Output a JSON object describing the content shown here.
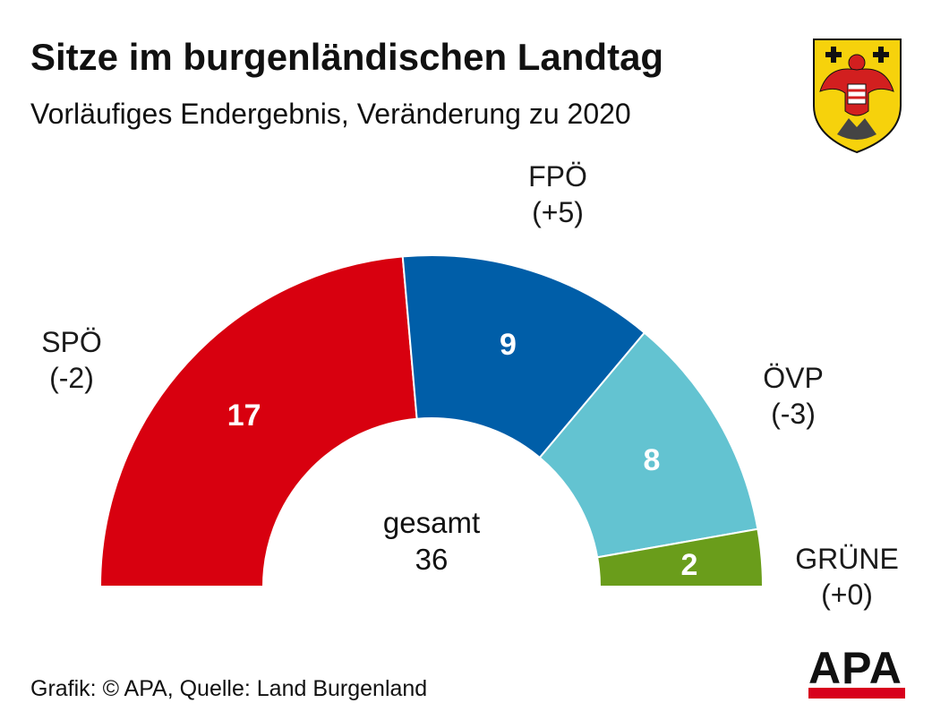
{
  "header": {
    "title": "Sitze im burgenländischen Landtag",
    "subtitle": "Vorläufiges Endergebnis, Veränderung zu 2020"
  },
  "footer": {
    "source": "Grafik: © APA, Quelle: Land Burgenland",
    "logo_text": "APA"
  },
  "colors": {
    "logo_red": "#d8001d",
    "crest_yellow": "#f6d20c",
    "crest_red": "#d21f1f"
  },
  "chart_data": {
    "type": "pie",
    "subtype": "semicircle-parliament",
    "title": "Sitze im burgenländischen Landtag",
    "subtitle": "Vorläufiges Endergebnis, Veränderung zu 2020",
    "total_label": "gesamt",
    "total": 36,
    "series": [
      {
        "name": "SPÖ",
        "value": 17,
        "change": "(-2)",
        "color": "#d8000f"
      },
      {
        "name": "FPÖ",
        "value": 9,
        "change": "(+5)",
        "color": "#005ea8"
      },
      {
        "name": "ÖVP",
        "value": 8,
        "change": "(-3)",
        "color": "#63c3d1"
      },
      {
        "name": "GRÜNE",
        "value": 2,
        "change": "(+0)",
        "color": "#6a9d1b"
      }
    ]
  }
}
